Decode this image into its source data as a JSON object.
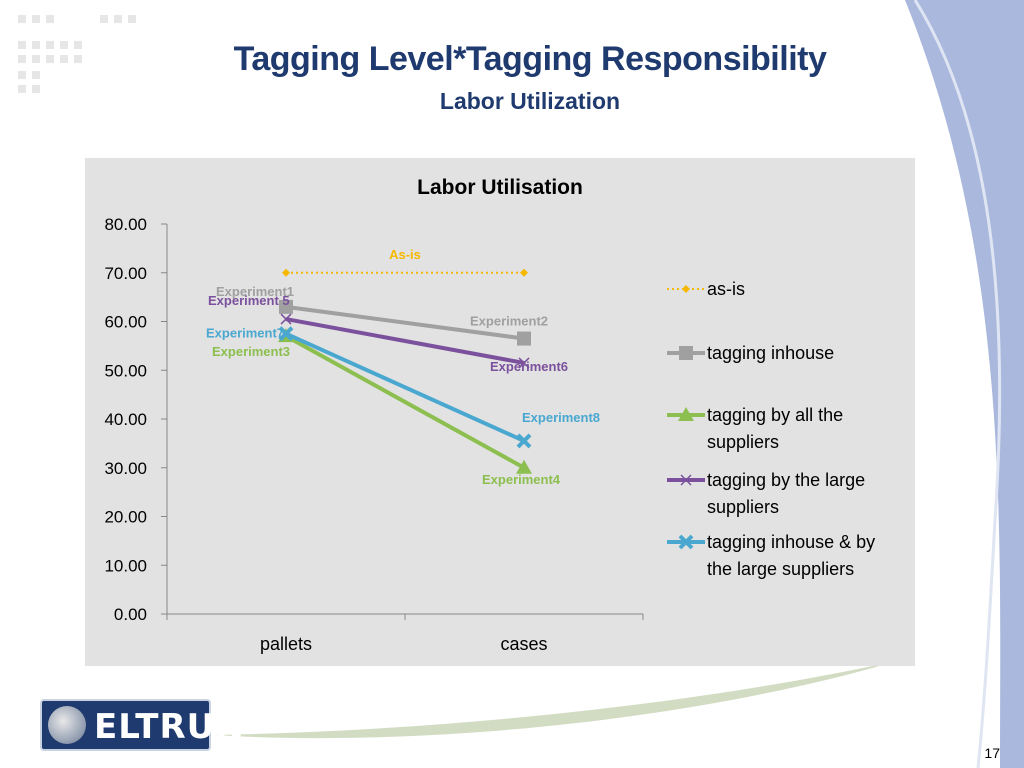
{
  "slide": {
    "title": "Tagging Level*Tagging Responsibility",
    "subtitle": "Labor Utilization",
    "page_number": "17",
    "logo_text": "ELTRUN"
  },
  "colors": {
    "title": "#1f3a6e",
    "panel": "#e2e2e2",
    "as_is": "#f5b800",
    "inhouse": "#a0a0a0",
    "all_suppliers": "#8cbf4f",
    "large_suppliers": "#7b519d",
    "inhouse_large": "#4aa8d0"
  },
  "chart_data": {
    "type": "line",
    "title": "Labor Utilisation",
    "categories": [
      "pallets",
      "cases"
    ],
    "ylim": [
      0,
      80
    ],
    "yticks": [
      "0.00",
      "10.00",
      "20.00",
      "30.00",
      "40.00",
      "50.00",
      "60.00",
      "70.00",
      "80.00"
    ],
    "grid": false,
    "legend_position": "right",
    "series": [
      {
        "name": "as-is",
        "values": [
          70,
          70
        ],
        "color": "#f5b800",
        "marker": "diamond",
        "dashed": true,
        "labels": [
          "As-is",
          ""
        ]
      },
      {
        "name": "tagging inhouse",
        "values": [
          63,
          56.5
        ],
        "color": "#a0a0a0",
        "marker": "square",
        "labels": [
          "Experiment1",
          "Experiment2"
        ]
      },
      {
        "name": "tagging by all the suppliers",
        "values": [
          57,
          30
        ],
        "color": "#8cbf4f",
        "marker": "triangle",
        "labels": [
          "Experiment3",
          "Experiment4"
        ]
      },
      {
        "name": "tagging by the large suppliers",
        "values": [
          60.5,
          51.5
        ],
        "color": "#7b519d",
        "marker": "x",
        "labels": [
          "Experiment 5",
          "Experiment6"
        ]
      },
      {
        "name": "tagging inhouse & by the large suppliers",
        "values": [
          57.5,
          35.5
        ],
        "color": "#4aa8d0",
        "marker": "cross",
        "labels": [
          "Experiment7",
          "Experiment8"
        ]
      }
    ],
    "legend_lines": [
      [
        "as-is"
      ],
      [
        "tagging inhouse"
      ],
      [
        "tagging by all the",
        "suppliers"
      ],
      [
        "tagging by the large",
        "suppliers"
      ],
      [
        "tagging inhouse & by",
        "the large suppliers"
      ]
    ]
  }
}
